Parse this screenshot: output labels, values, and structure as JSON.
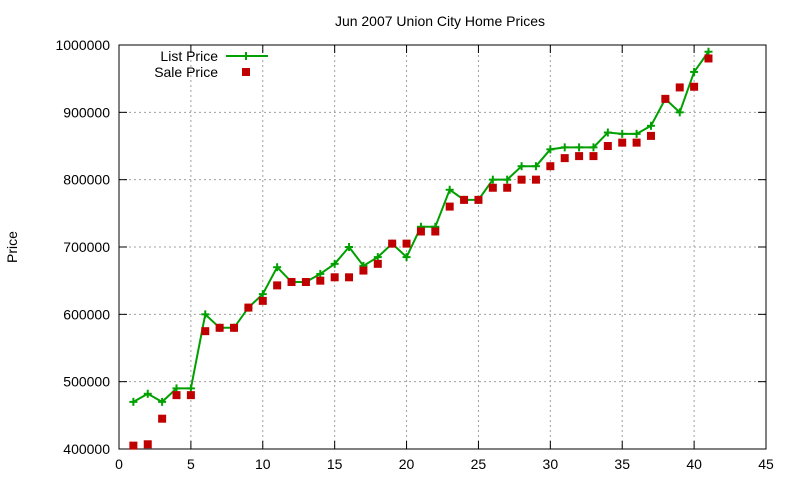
{
  "chart_data": {
    "type": "scatter",
    "title": "Jun 2007 Union City Home Prices",
    "xlabel": "",
    "ylabel": "Price",
    "xlim": [
      0,
      45
    ],
    "ylim": [
      400000,
      1000000
    ],
    "xticks": [
      0,
      5,
      10,
      15,
      20,
      25,
      30,
      35,
      40,
      45
    ],
    "yticks": [
      400000,
      500000,
      600000,
      700000,
      800000,
      900000,
      1000000
    ],
    "grid": true,
    "legend_position": "top-left",
    "series": [
      {
        "name": "List Price",
        "style": "linespoints",
        "color": "#00a000",
        "x": [
          1,
          2,
          3,
          4,
          5,
          6,
          7,
          8,
          9,
          10,
          11,
          12,
          13,
          14,
          15,
          16,
          17,
          18,
          19,
          20,
          21,
          22,
          23,
          24,
          25,
          26,
          27,
          28,
          29,
          30,
          31,
          32,
          33,
          34,
          35,
          36,
          37,
          38,
          39,
          40,
          41
        ],
        "values": [
          470000,
          482000,
          470000,
          490000,
          490000,
          600000,
          580000,
          580000,
          610000,
          630000,
          670000,
          648000,
          648000,
          660000,
          675000,
          700000,
          672000,
          685000,
          705000,
          685000,
          730000,
          730000,
          785000,
          770000,
          770000,
          800000,
          800000,
          820000,
          820000,
          845000,
          848000,
          848000,
          848000,
          870000,
          868000,
          868000,
          880000,
          920000,
          900000,
          960000,
          990000
        ]
      },
      {
        "name": "Sale Price",
        "style": "points",
        "color": "#c00000",
        "x": [
          1,
          2,
          3,
          4,
          5,
          6,
          7,
          8,
          9,
          10,
          11,
          12,
          13,
          14,
          15,
          16,
          17,
          18,
          19,
          20,
          21,
          22,
          23,
          24,
          25,
          26,
          27,
          28,
          29,
          30,
          31,
          32,
          33,
          34,
          35,
          36,
          37,
          38,
          39,
          40,
          41
        ],
        "values": [
          405000,
          407000,
          445000,
          480000,
          480000,
          575000,
          580000,
          580000,
          610000,
          620000,
          643000,
          648000,
          648000,
          650000,
          655000,
          655000,
          665000,
          675000,
          705000,
          705000,
          723000,
          723000,
          760000,
          770000,
          770000,
          788000,
          788000,
          800000,
          800000,
          820000,
          832000,
          835000,
          835000,
          850000,
          855000,
          855000,
          865000,
          920000,
          937000,
          938000,
          980000
        ]
      }
    ]
  }
}
